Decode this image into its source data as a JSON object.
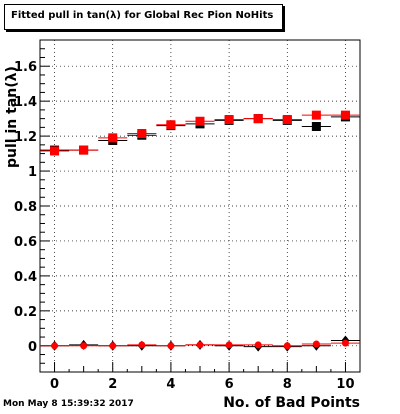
{
  "title": "Fitted pull in tan(λ) for Global Rec Pion NoHits",
  "footer": "Mon May  8 15:39:32 2017",
  "colors": {
    "black_series": "#000000",
    "red_series": "#ff0000",
    "grid": "#000000"
  },
  "chart_data": {
    "type": "scatter",
    "title": "Fitted pull in tan(λ) for Global Rec Pion NoHits",
    "xlabel": "No. of Bad Points",
    "ylabel": "pull in tan(λ)",
    "xlim": [
      -0.5,
      10.5
    ],
    "ylim": [
      -0.15,
      1.75
    ],
    "x_ticks": [
      0,
      2,
      4,
      6,
      8,
      10
    ],
    "x_tick_labels": [
      "0",
      "2",
      "4",
      "6",
      "8",
      "10"
    ],
    "y_ticks": [
      0,
      0.2,
      0.4,
      0.6,
      0.8,
      1,
      1.2,
      1.4,
      1.6
    ],
    "y_tick_labels": [
      "0",
      "0.2",
      "0.4",
      "0.6",
      "0.8",
      "1",
      "1.2",
      "1.4",
      "1.6"
    ],
    "grid": true,
    "legend": "none",
    "series": [
      {
        "marker": "square",
        "color": "#000000",
        "x": [
          0,
          1,
          2,
          3,
          4,
          5,
          6,
          7,
          8,
          9,
          10
        ],
        "y": [
          1.12,
          1.12,
          1.175,
          1.205,
          1.26,
          1.27,
          1.29,
          1.3,
          1.29,
          1.255,
          1.31
        ]
      },
      {
        "marker": "square",
        "color": "#ff0000",
        "x": [
          0,
          1,
          2,
          3,
          4,
          5,
          6,
          7,
          8,
          9,
          10
        ],
        "y": [
          1.115,
          1.12,
          1.19,
          1.215,
          1.265,
          1.285,
          1.295,
          1.3,
          1.295,
          1.32,
          1.32
        ]
      },
      {
        "marker": "diamond",
        "color": "#000000",
        "x": [
          0,
          1,
          2,
          3,
          4,
          5,
          6,
          7,
          8,
          9,
          10
        ],
        "y": [
          0.0,
          0.005,
          0.0,
          0.0,
          0.0,
          0.005,
          0.0,
          -0.005,
          -0.005,
          0.0,
          0.03
        ]
      },
      {
        "marker": "circle",
        "color": "#ff0000",
        "x": [
          0,
          1,
          2,
          3,
          4,
          5,
          6,
          7,
          8,
          9,
          10
        ],
        "y": [
          0.0,
          0.0,
          0.0,
          0.005,
          0.0,
          0.005,
          0.005,
          0.005,
          0.0,
          0.01,
          0.015
        ]
      }
    ]
  }
}
